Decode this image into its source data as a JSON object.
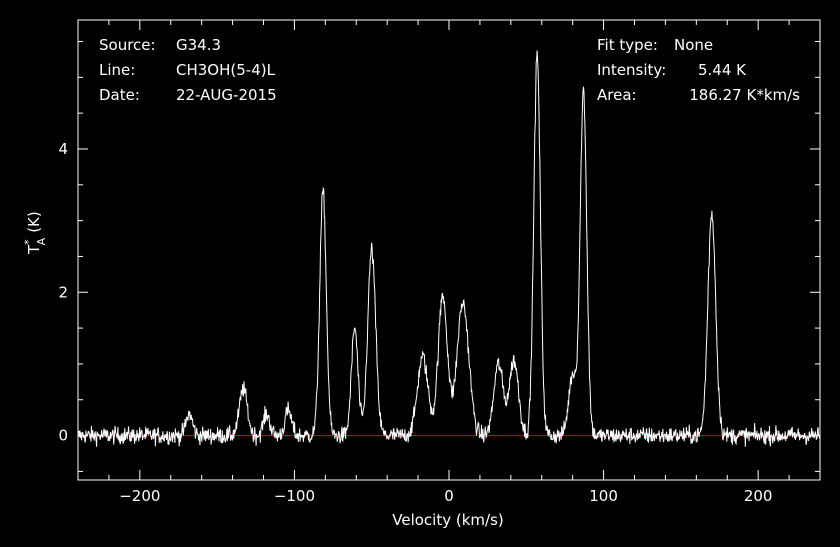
{
  "header": {
    "source_label": "Source:",
    "source_value": "G34.3",
    "line_label": "Line:",
    "line_value": "CH3OH(5-4)L",
    "date_label": "Date:",
    "date_value": "22-AUG-2015",
    "fit_label": "Fit type:",
    "fit_value": "None",
    "intensity_label": "Intensity:",
    "intensity_value": "5.44 K",
    "area_label": "Area:",
    "area_value": "186.27 K*km/s"
  },
  "colors": {
    "background": "#000000",
    "foreground": "#ffffff",
    "baseline": "#e00000"
  },
  "chart_data": {
    "type": "line",
    "xlabel": "Velocity (km/s)",
    "ylabel": "T*A (K)",
    "ylabel_main": "T",
    "ylabel_sup": "*",
    "ylabel_sub": "A",
    "ylabel_unit": "(K)",
    "xlim": [
      -240,
      240
    ],
    "ylim": [
      -0.62,
      5.8
    ],
    "x_ticks": [
      -200,
      -100,
      0,
      100,
      200
    ],
    "y_ticks": [
      0,
      2,
      4
    ],
    "baseline": 0,
    "grid": false,
    "noise_rms": 0.06,
    "peaks": [
      {
        "v": -168,
        "amp": 0.3,
        "fwhm": 5
      },
      {
        "v": -133,
        "amp": 0.65,
        "fwhm": 6
      },
      {
        "v": -118,
        "amp": 0.3,
        "fwhm": 5
      },
      {
        "v": -104,
        "amp": 0.35,
        "fwhm": 5
      },
      {
        "v": -81.5,
        "amp": 3.4,
        "fwhm": 5
      },
      {
        "v": -61,
        "amp": 1.5,
        "fwhm": 5
      },
      {
        "v": -50,
        "amp": 2.6,
        "fwhm": 6
      },
      {
        "v": -17,
        "amp": 1.1,
        "fwhm": 8
      },
      {
        "v": -4,
        "amp": 1.95,
        "fwhm": 7
      },
      {
        "v": 9,
        "amp": 1.85,
        "fwhm": 9
      },
      {
        "v": 32,
        "amp": 1.0,
        "fwhm": 7
      },
      {
        "v": 42,
        "amp": 1.05,
        "fwhm": 7
      },
      {
        "v": 57,
        "amp": 5.3,
        "fwhm": 5
      },
      {
        "v": 80,
        "amp": 0.85,
        "fwhm": 6
      },
      {
        "v": 87,
        "amp": 4.8,
        "fwhm": 5
      },
      {
        "v": 170,
        "amp": 3.1,
        "fwhm": 6
      }
    ]
  }
}
